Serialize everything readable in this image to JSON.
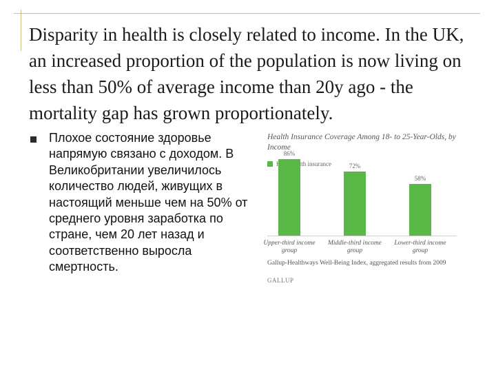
{
  "slide": {
    "title": "Disparity in health is closely related to income. In the UK, an increased proportion of the population is now living on less than 50% of average income than 20y ago - the mortality gap has grown proportionately.",
    "bullet": "Плохое состояние здоровье напрямую связано с доходом. В Великобритании увеличилось количество людей, живущих в настоящий меньше чем на 50% от среднего уровня заработка по стране, чем 20 лет назад и соответственно выросла смертность."
  },
  "chart_data": {
    "type": "bar",
    "title": "Health Insurance Coverage Among 18- to 25-Year-Olds, by Income",
    "legend": "Have health insurance",
    "categories": [
      "Upper-third income group",
      "Middle-third income group",
      "Lower-third income group"
    ],
    "value_labels": [
      "86%",
      "72%",
      "58%"
    ],
    "values": [
      86,
      72,
      58
    ],
    "ylim": [
      0,
      100
    ],
    "source": "Gallup-Healthways Well-Being Index, aggregated results from 2009",
    "brand": "GALLUP",
    "color": "#5ab946"
  }
}
